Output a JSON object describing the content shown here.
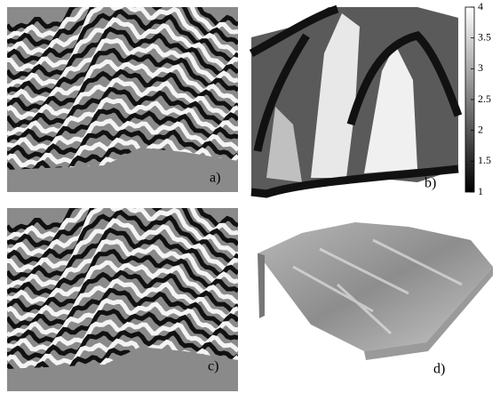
{
  "panels": {
    "a": "a)",
    "b": "b)",
    "c": "c)",
    "d": "d)"
  },
  "colorbar": {
    "lim": [
      1,
      4
    ],
    "ticks": [
      1,
      1.5,
      2,
      2.5,
      3,
      3.5,
      4
    ]
  }
}
